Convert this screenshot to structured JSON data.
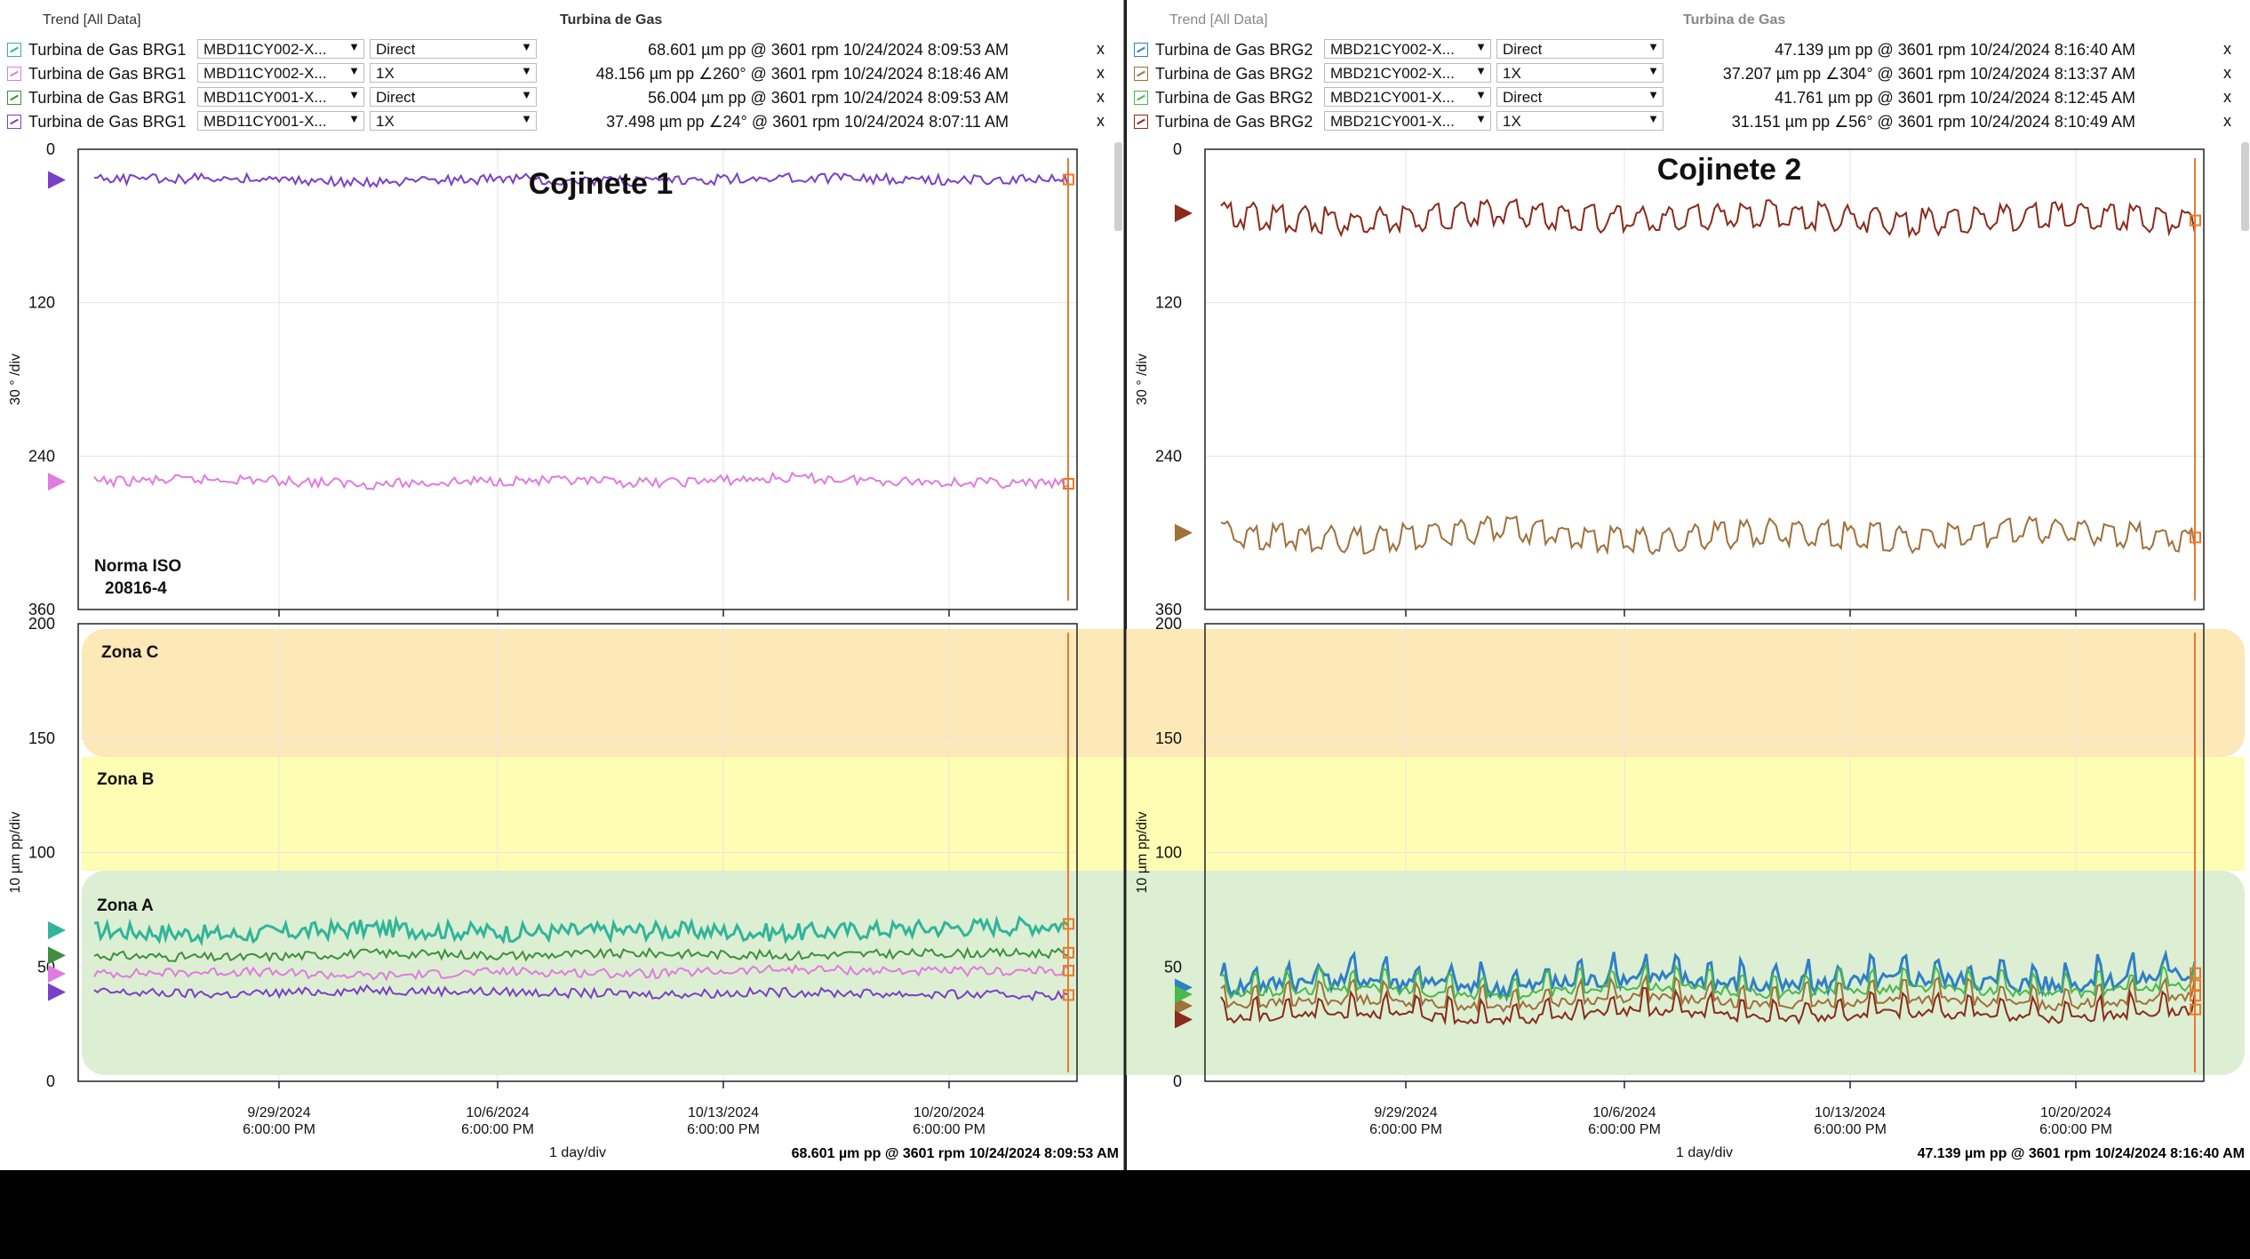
{
  "colors": {
    "zone_c": "#fde9b8",
    "zone_b": "#fdfdb3",
    "zone_a": "#dcefd2",
    "cursor": "#e87a2e",
    "grid": "#e6e6e6"
  },
  "panels": [
    {
      "header": {
        "left_label": "Trend  [All Data]",
        "center_title": "Turbina de Gas"
      },
      "channels": [
        {
          "name": "Turbina de Gas BRG1",
          "point": "MBD11CY002-X...",
          "mode": "Direct",
          "value": "68.601 µm pp @ 3601 rpm 10/24/2024 8:09:53 AM",
          "color": "#2fb59b",
          "icon": "trend-icon"
        },
        {
          "name": "Turbina de Gas BRG1",
          "point": "MBD11CY002-X...",
          "mode": "1X",
          "value": "48.156 µm pp ∠260° @ 3601 rpm 10/24/2024 8:18:46 AM",
          "color": "#e07be0",
          "icon": "trend-icon"
        },
        {
          "name": "Turbina de Gas BRG1",
          "point": "MBD11CY001-X...",
          "mode": "Direct",
          "value": "56.004 µm pp @ 3601 rpm 10/24/2024 8:09:53 AM",
          "color": "#3f8f3f",
          "icon": "trend-icon"
        },
        {
          "name": "Turbina de Gas BRG1",
          "point": "MBD11CY001-X...",
          "mode": "1X",
          "value": "37.498 µm pp ∠24° @ 3601 rpm 10/24/2024 8:07:11 AM",
          "color": "#7a3fc7",
          "icon": "trend-icon"
        }
      ],
      "close_label": "x",
      "phase_title": "Cojinete 1",
      "norm_label": "Norma ISO\n20816-4",
      "zones": [
        "Zona C",
        "Zona B",
        "Zona A"
      ],
      "footer_value": "68.601 µm pp @ 3601 rpm 10/24/2024 8:09:53 AM"
    },
    {
      "header": {
        "left_label": "Trend  [All Data]",
        "center_title": "Turbina de Gas"
      },
      "channels": [
        {
          "name": "Turbina de Gas BRG2",
          "point": "MBD21CY002-X...",
          "mode": "Direct",
          "value": "47.139 µm pp @ 3601 rpm 10/24/2024 8:16:40 AM",
          "color": "#2f7fc7",
          "icon": "trend-icon"
        },
        {
          "name": "Turbina de Gas BRG2",
          "point": "MBD21CY002-X...",
          "mode": "1X",
          "value": "37.207 µm pp ∠304° @ 3601 rpm 10/24/2024 8:13:37 AM",
          "color": "#a0703a",
          "icon": "trend-icon"
        },
        {
          "name": "Turbina de Gas BRG2",
          "point": "MBD21CY001-X...",
          "mode": "Direct",
          "value": "41.761 µm pp @ 3601 rpm 10/24/2024 8:12:45 AM",
          "color": "#4ab84a",
          "icon": "trend-icon"
        },
        {
          "name": "Turbina de Gas BRG2",
          "point": "MBD21CY001-X...",
          "mode": "1X",
          "value": "31.151 µm pp ∠56° @ 3601 rpm 10/24/2024 8:10:49 AM",
          "color": "#8b2a1a",
          "icon": "trend-icon"
        }
      ],
      "close_label": "x",
      "phase_title": "Cojinete 2",
      "norm_label": "",
      "zones": [],
      "footer_value": "47.139 µm pp @ 3601 rpm 10/24/2024 8:16:40 AM"
    }
  ],
  "chart_data": [
    {
      "type": "line",
      "title": "Cojinete 1",
      "ylabel": "30 ° /div",
      "ylim": [
        0,
        360
      ],
      "y_ticks": [
        "0",
        "120",
        "240",
        "360"
      ],
      "x_ticks": [
        "9/29/2024\n6:00:00 PM",
        "10/6/2024\n6:00:00 PM",
        "10/13/2024\n6:00:00 PM",
        "10/20/2024\n6:00:00 PM"
      ],
      "xlabel": "1 day/div",
      "series": [
        {
          "mode": "1X",
          "point": "MBD11CY002-X...",
          "values": [
            260,
            258,
            262,
            259,
            261,
            257,
            260,
            262
          ]
        },
        {
          "mode": "1X",
          "point": "MBD11CY001-X...",
          "values": [
            24,
            22,
            26,
            23,
            25,
            22,
            24,
            24
          ]
        }
      ]
    },
    {
      "type": "line",
      "title": "",
      "ylabel": "10 µm pp/div",
      "ylim": [
        0,
        200
      ],
      "y_ticks": [
        "0",
        "50",
        "100",
        "150",
        "200"
      ],
      "x_ticks": [
        "9/29/2024\n6:00:00 PM",
        "10/6/2024\n6:00:00 PM",
        "10/13/2024\n6:00:00 PM",
        "10/20/2024\n6:00:00 PM"
      ],
      "xlabel": "1 day/div",
      "zones": [
        {
          "label": "Zona A",
          "range": [
            0,
            90
          ]
        },
        {
          "label": "Zona B",
          "range": [
            90,
            145
          ]
        },
        {
          "label": "Zona C",
          "range": [
            145,
            200
          ]
        }
      ],
      "series": [
        {
          "mode": "Direct",
          "point": "MBD11CY002-X...",
          "values": [
            66,
            64,
            67,
            65,
            66,
            65,
            67,
            68.6
          ]
        },
        {
          "mode": "1X",
          "point": "MBD11CY002-X...",
          "values": [
            47,
            48,
            46,
            48,
            47,
            49,
            48,
            48.2
          ]
        },
        {
          "mode": "Direct",
          "point": "MBD11CY001-X...",
          "values": [
            55,
            54,
            56,
            55,
            56,
            55,
            56,
            56.0
          ]
        },
        {
          "mode": "1X",
          "point": "MBD11CY001-X...",
          "values": [
            39,
            38,
            40,
            39,
            38,
            39,
            38,
            37.5
          ]
        }
      ]
    },
    {
      "type": "line",
      "title": "Cojinete 2",
      "ylabel": "30 ° /div",
      "ylim": [
        0,
        360
      ],
      "y_ticks": [
        "0",
        "120",
        "240",
        "360"
      ],
      "x_ticks": [
        "9/29/2024\n6:00:00 PM",
        "10/6/2024\n6:00:00 PM",
        "10/13/2024\n6:00:00 PM",
        "10/20/2024\n6:00:00 PM"
      ],
      "xlabel": "1 day/div",
      "series": [
        {
          "mode": "1X",
          "point": "MBD21CY002-X...",
          "values": [
            300,
            305,
            295,
            306,
            298,
            304,
            296,
            304
          ]
        },
        {
          "mode": "1X",
          "point": "MBD21CY001-X...",
          "values": [
            50,
            56,
            48,
            55,
            49,
            56,
            50,
            56
          ]
        }
      ]
    },
    {
      "type": "line",
      "title": "",
      "ylabel": "10 µm pp/div",
      "ylim": [
        0,
        200
      ],
      "y_ticks": [
        "0",
        "50",
        "100",
        "150",
        "200"
      ],
      "x_ticks": [
        "9/29/2024\n6:00:00 PM",
        "10/6/2024\n6:00:00 PM",
        "10/13/2024\n6:00:00 PM",
        "10/20/2024\n6:00:00 PM"
      ],
      "xlabel": "1 day/div",
      "series": [
        {
          "mode": "Direct",
          "point": "MBD21CY002-X...",
          "values": [
            41,
            45,
            40,
            46,
            41,
            45,
            42,
            47.1
          ]
        },
        {
          "mode": "1X",
          "point": "MBD21CY002-X...",
          "values": [
            33,
            36,
            32,
            37,
            33,
            36,
            33,
            37.2
          ]
        },
        {
          "mode": "Direct",
          "point": "MBD21CY001-X...",
          "values": [
            38,
            41,
            37,
            42,
            38,
            41,
            38,
            41.8
          ]
        },
        {
          "mode": "1X",
          "point": "MBD21CY001-X...",
          "values": [
            27,
            30,
            26,
            31,
            27,
            30,
            27,
            31.2
          ]
        }
      ]
    }
  ]
}
